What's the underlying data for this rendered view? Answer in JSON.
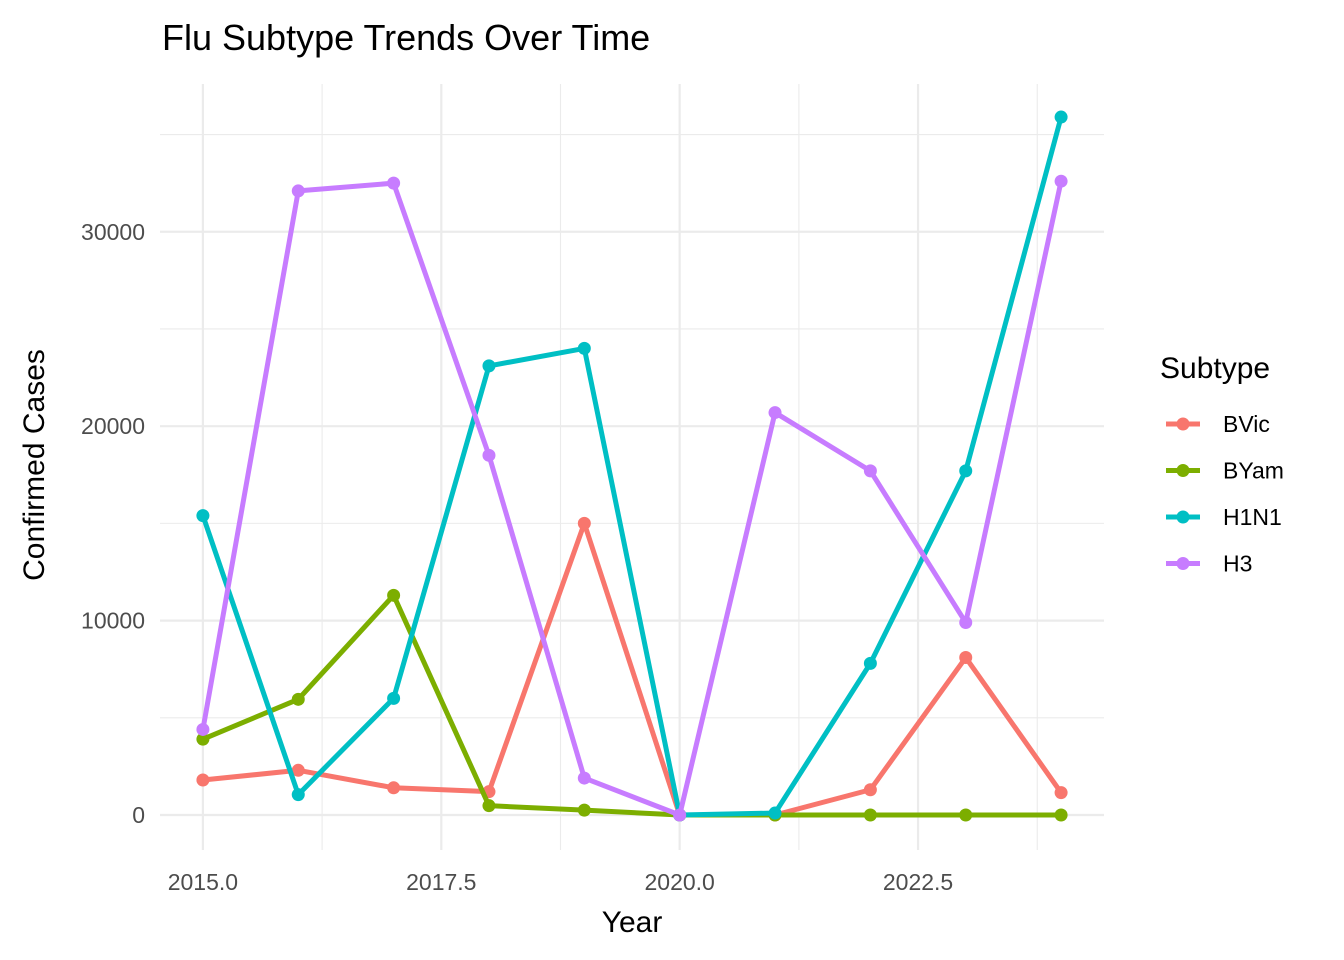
{
  "chart_data": {
    "type": "line",
    "title": "Flu Subtype Trends Over Time",
    "xlabel": "Year",
    "ylabel": "Confirmed Cases",
    "x": [
      2015,
      2016,
      2017,
      2018,
      2019,
      2020,
      2021,
      2022,
      2023,
      2024
    ],
    "xlim": [
      2014.55,
      2024.45
    ],
    "ylim": [
      -1800,
      37600
    ],
    "x_ticks": [
      2015.0,
      2017.5,
      2020.0,
      2022.5
    ],
    "x_tick_labels": [
      "2015.0",
      "2017.5",
      "2020.0",
      "2022.5"
    ],
    "y_ticks": [
      0,
      10000,
      20000,
      30000
    ],
    "y_tick_labels": [
      "0",
      "10000",
      "20000",
      "30000"
    ],
    "grid": true,
    "legend": {
      "title": "Subtype",
      "placement": "right"
    },
    "series": [
      {
        "name": "BVic",
        "color": "#F8766D",
        "values": [
          1800,
          2300,
          1400,
          1200,
          15000,
          0,
          0,
          1300,
          8100,
          1150
        ]
      },
      {
        "name": "BYam",
        "color": "#7CAE00",
        "values": [
          3900,
          5950,
          11300,
          480,
          250,
          0,
          0,
          0,
          0,
          0
        ]
      },
      {
        "name": "H1N1",
        "color": "#00BFC4",
        "values": [
          15400,
          1050,
          6000,
          23100,
          24000,
          0,
          100,
          7800,
          17700,
          35900
        ]
      },
      {
        "name": "H3",
        "color": "#C77CFF",
        "values": [
          4400,
          32100,
          32500,
          18500,
          1900,
          0,
          20700,
          17700,
          9900,
          32600
        ]
      }
    ]
  }
}
